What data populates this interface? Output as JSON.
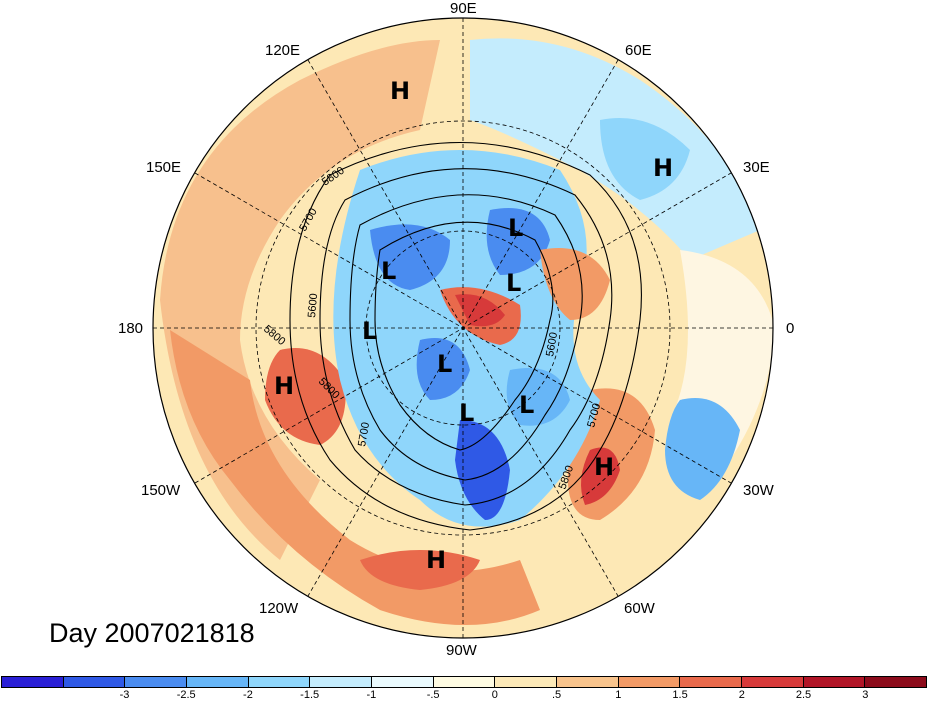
{
  "date_label": "Day 2007021818",
  "longitude_labels": [
    "90E",
    "60E",
    "30E",
    "0",
    "30W",
    "60W",
    "90W",
    "120W",
    "150W",
    "180",
    "150E",
    "120E"
  ],
  "pressure_centers": [
    "H",
    "H",
    "L",
    "L",
    "L",
    "L",
    "L",
    "L",
    "L",
    "H",
    "H",
    "H"
  ],
  "contour_labels": [
    "5800",
    "5700",
    "5600",
    "5800",
    "5800",
    "5700",
    "5600",
    "5700",
    "5800"
  ],
  "colorbar": {
    "colors": [
      "#2a1fd6",
      "#2f59e6",
      "#4a8cf0",
      "#67b6f7",
      "#8fd6fb",
      "#c4ecfd",
      "#eafafe",
      "#fefbe2",
      "#fce9b8",
      "#f8c48d",
      "#f29a66",
      "#e96a4c",
      "#d73a3a",
      "#b11527",
      "#8c0b1b"
    ],
    "ticks": [
      "-3",
      "-2.5",
      "-2",
      "-1.5",
      "-1",
      "-.5",
      "0",
      ".5",
      "1",
      "1.5",
      "2",
      "2.5",
      "3"
    ]
  }
}
